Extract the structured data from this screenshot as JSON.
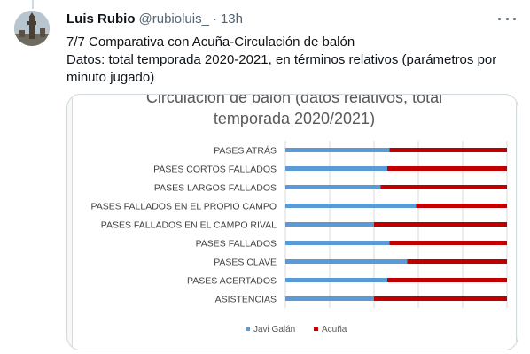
{
  "tweet": {
    "author_name": "Luis Rubio",
    "author_handle": "@rubioluis_",
    "separator": "·",
    "time": "13h",
    "text_line1": "7/7 Comparativa con Acuña-Circulación de balón",
    "text_line2": "Datos: total temporada 2020-2021, en términos relativos (parámetros por",
    "text_line3": "minuto jugado)",
    "more_icon": "ellipsis-icon"
  },
  "chart_data": {
    "type": "bar",
    "orientation": "horizontal",
    "stacked": "100%",
    "title_line1": "Circulación de balón (datos relativos, total",
    "title_line2": "temporada 2020/2021)",
    "categories": [
      "PASES ATRÁS",
      "PASES CORTOS FALLADOS",
      "PASES LARGOS FALLADOS",
      "PASES FALLADOS EN EL PROPIO CAMPO",
      "PASES FALLADOS EN EL CAMPO RIVAL",
      "PASES FALLADOS",
      "PASES CLAVE",
      "PASES ACERTADOS",
      "ASISTENCIAS"
    ],
    "series": [
      {
        "name": "Javi Galán",
        "color": "#5b9bd5",
        "values": [
          47,
          46,
          43,
          59,
          40,
          47,
          55,
          46,
          40
        ]
      },
      {
        "name": "Acuña",
        "color": "#c00000",
        "values": [
          53,
          54,
          57,
          41,
          60,
          53,
          45,
          54,
          60
        ]
      }
    ],
    "xlim": [
      0,
      100
    ],
    "grid": true,
    "legend": "bottom"
  }
}
